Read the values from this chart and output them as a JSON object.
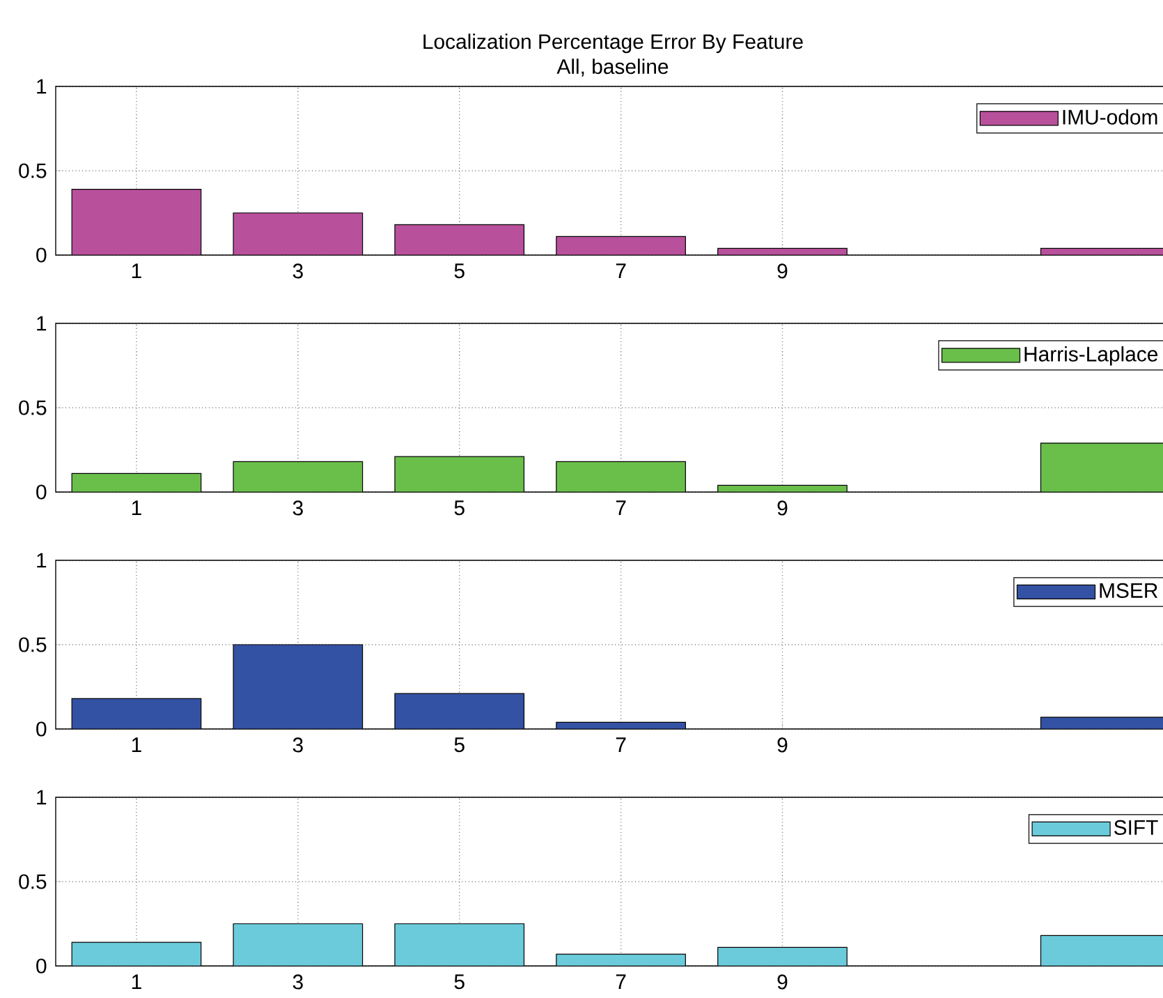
{
  "chart_data": [
    {
      "type": "bar",
      "title": "Localization Percentage Error By Feature",
      "subtitle": "All, baseline",
      "x": [
        1,
        3,
        5,
        7,
        9,
        13
      ],
      "xlim": [
        0,
        13.8
      ],
      "xticks": [
        1,
        3,
        5,
        7,
        9
      ],
      "ylim": [
        0,
        1
      ],
      "yticks": [
        0,
        0.5,
        1
      ],
      "grid": true,
      "legend": "top right",
      "series": [
        {
          "name": "IMU-odom",
          "color": "#b8509c",
          "values": [
            0.39,
            0.25,
            0.18,
            0.11,
            0.04,
            0.04
          ]
        }
      ]
    },
    {
      "type": "bar",
      "x": [
        1,
        3,
        5,
        7,
        9,
        13
      ],
      "xlim": [
        0,
        13.8
      ],
      "xticks": [
        1,
        3,
        5,
        7,
        9
      ],
      "ylim": [
        0,
        1
      ],
      "yticks": [
        0,
        0.5,
        1
      ],
      "grid": true,
      "legend": "top right",
      "series": [
        {
          "name": "Harris-Laplace",
          "color": "#6abf4b",
          "values": [
            0.11,
            0.18,
            0.21,
            0.18,
            0.04,
            0.29
          ]
        }
      ]
    },
    {
      "type": "bar",
      "x": [
        1,
        3,
        5,
        7,
        9,
        13
      ],
      "xlim": [
        0,
        13.8
      ],
      "xticks": [
        1,
        3,
        5,
        7,
        9
      ],
      "ylim": [
        0,
        1
      ],
      "yticks": [
        0,
        0.5,
        1
      ],
      "grid": true,
      "legend": "top right",
      "series": [
        {
          "name": "MSER",
          "color": "#3452a4",
          "values": [
            0.18,
            0.5,
            0.21,
            0.04,
            null,
            0.07
          ]
        }
      ]
    },
    {
      "type": "bar",
      "x": [
        1,
        3,
        5,
        7,
        9,
        13
      ],
      "xlim": [
        0,
        13.8
      ],
      "xticks": [
        1,
        3,
        5,
        7,
        9
      ],
      "ylim": [
        0,
        1
      ],
      "yticks": [
        0,
        0.5,
        1
      ],
      "grid": true,
      "legend": "top right",
      "series": [
        {
          "name": "SIFT",
          "color": "#6ccbdb",
          "values": [
            0.14,
            0.25,
            0.25,
            0.07,
            0.11,
            0.18
          ]
        }
      ]
    }
  ]
}
